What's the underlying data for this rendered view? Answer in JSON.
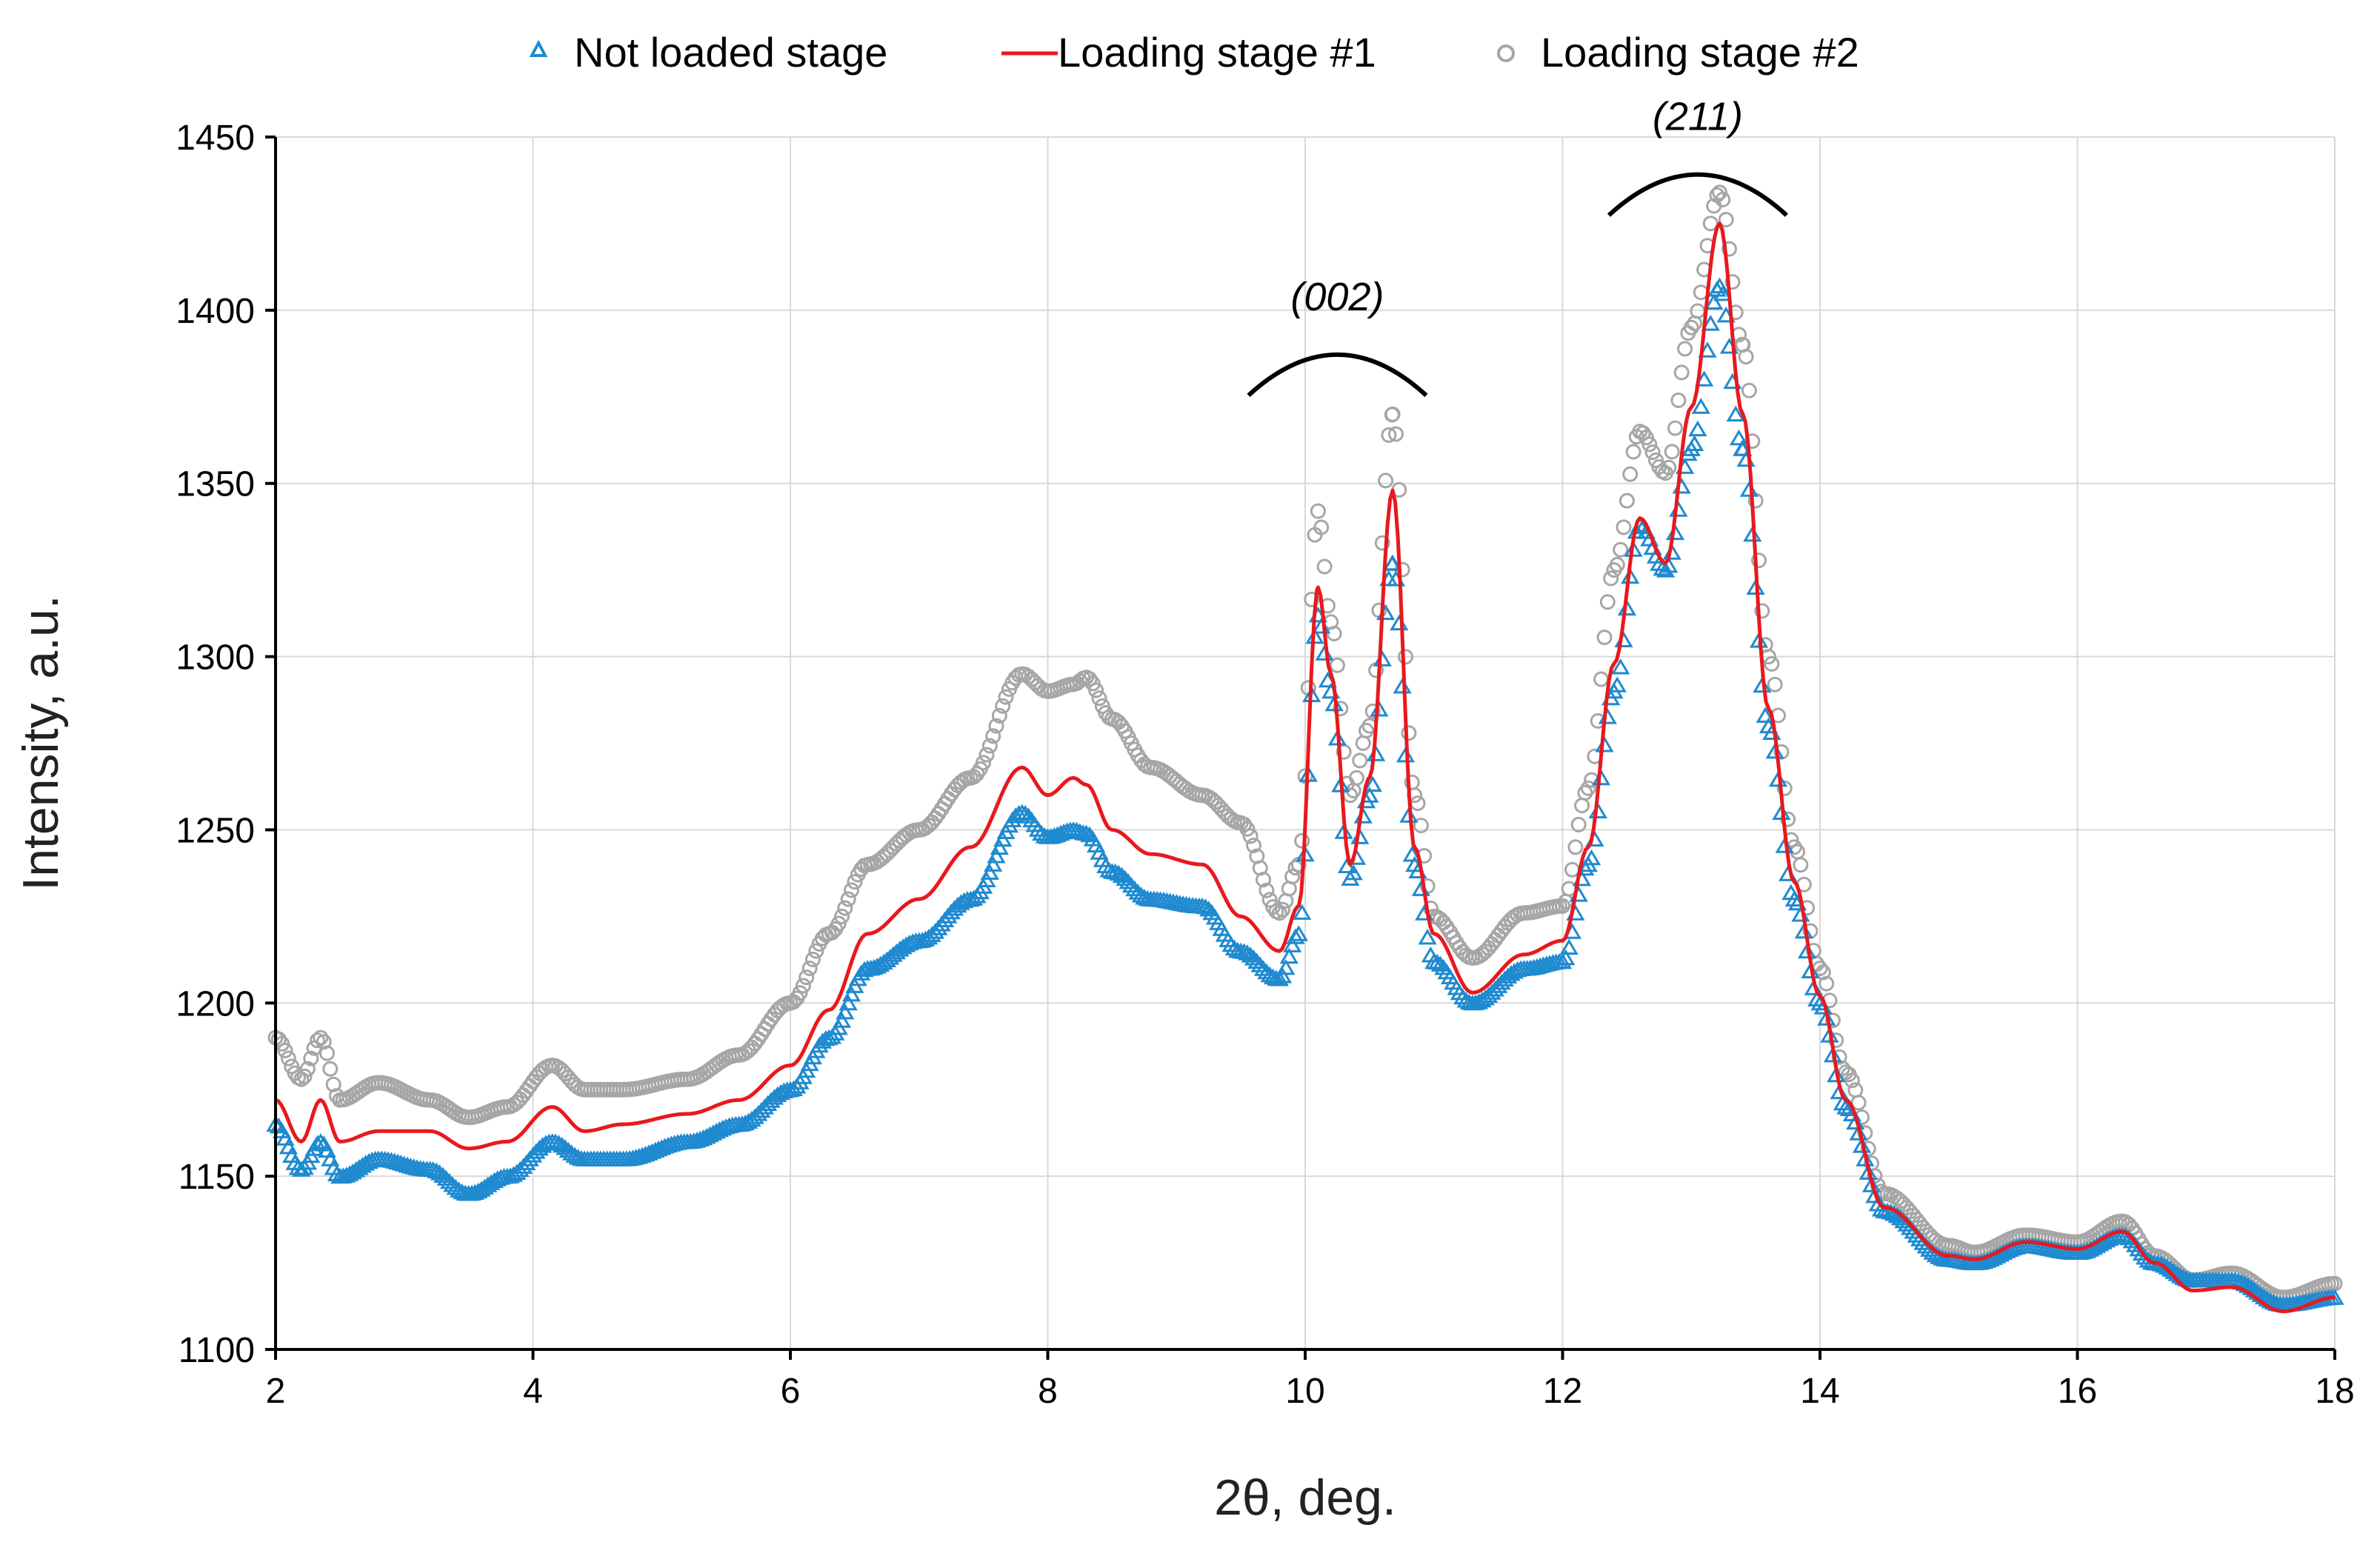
{
  "chart_data": {
    "type": "line",
    "title": "",
    "xlabel": "2θ, deg.",
    "ylabel": "Intensity, a.u.",
    "xlim": [
      2,
      18
    ],
    "ylim": [
      1100,
      1450
    ],
    "xticks": [
      2,
      4,
      6,
      8,
      10,
      12,
      14,
      16,
      18
    ],
    "yticks": [
      1100,
      1150,
      1200,
      1250,
      1300,
      1350,
      1400,
      1450
    ],
    "grid": true,
    "legend_position": "top-center",
    "x": [
      2.0,
      2.2,
      2.35,
      2.5,
      2.8,
      3.2,
      3.5,
      3.8,
      4.15,
      4.4,
      4.7,
      5.2,
      5.6,
      6.0,
      6.3,
      6.6,
      7.0,
      7.4,
      7.8,
      8.0,
      8.2,
      8.3,
      8.5,
      8.8,
      9.2,
      9.5,
      9.8,
      9.95,
      10.1,
      10.2,
      10.35,
      10.5,
      10.68,
      10.85,
      11.0,
      11.3,
      11.7,
      12.0,
      12.2,
      12.4,
      12.6,
      12.8,
      13.0,
      13.22,
      13.4,
      13.6,
      13.8,
      14.0,
      14.2,
      14.5,
      15.0,
      15.2,
      15.6,
      16.0,
      16.35,
      16.6,
      16.9,
      17.2,
      17.6,
      18.0
    ],
    "series": [
      {
        "name": "Not loaded stage",
        "color": "#1f8ad0",
        "marker": "triangle",
        "values": [
          1165,
          1152,
          1160,
          1150,
          1155,
          1152,
          1145,
          1150,
          1160,
          1155,
          1155,
          1160,
          1165,
          1175,
          1190,
          1210,
          1218,
          1230,
          1255,
          1248,
          1250,
          1249,
          1238,
          1230,
          1228,
          1215,
          1207,
          1220,
          1312,
          1290,
          1236,
          1260,
          1327,
          1240,
          1212,
          1200,
          1210,
          1212,
          1240,
          1290,
          1338,
          1325,
          1360,
          1407,
          1360,
          1280,
          1230,
          1200,
          1170,
          1140,
          1126,
          1125,
          1130,
          1128,
          1133,
          1125,
          1120,
          1120,
          1113,
          1115
        ]
      },
      {
        "name": "Loading stage #1",
        "color": "#e8191e",
        "marker": "line",
        "values": [
          1172,
          1160,
          1172,
          1160,
          1163,
          1163,
          1158,
          1160,
          1170,
          1163,
          1165,
          1168,
          1172,
          1182,
          1198,
          1220,
          1230,
          1245,
          1268,
          1260,
          1265,
          1263,
          1250,
          1243,
          1240,
          1225,
          1215,
          1228,
          1320,
          1295,
          1240,
          1265,
          1348,
          1245,
          1220,
          1203,
          1214,
          1218,
          1245,
          1298,
          1340,
          1327,
          1372,
          1425,
          1370,
          1285,
          1235,
          1202,
          1172,
          1141,
          1127,
          1126,
          1131,
          1129,
          1134,
          1125,
          1117,
          1118,
          1111,
          1115
        ]
      },
      {
        "name": "Loading stage #2",
        "color": "#a6a6a6",
        "marker": "circle",
        "values": [
          1190,
          1178,
          1190,
          1172,
          1177,
          1172,
          1167,
          1170,
          1182,
          1175,
          1175,
          1178,
          1185,
          1200,
          1220,
          1240,
          1250,
          1265,
          1295,
          1290,
          1292,
          1294,
          1282,
          1268,
          1260,
          1252,
          1226,
          1240,
          1342,
          1310,
          1260,
          1280,
          1370,
          1260,
          1225,
          1213,
          1226,
          1228,
          1262,
          1325,
          1365,
          1353,
          1395,
          1434,
          1390,
          1300,
          1245,
          1210,
          1180,
          1145,
          1130,
          1128,
          1133,
          1131,
          1137,
          1127,
          1120,
          1122,
          1115,
          1119
        ]
      }
    ],
    "annotations": [
      {
        "text": "(002)",
        "x": 10.25,
        "y": 1400
      },
      {
        "text": "(211)",
        "x": 13.05,
        "y": 1452
      }
    ]
  }
}
